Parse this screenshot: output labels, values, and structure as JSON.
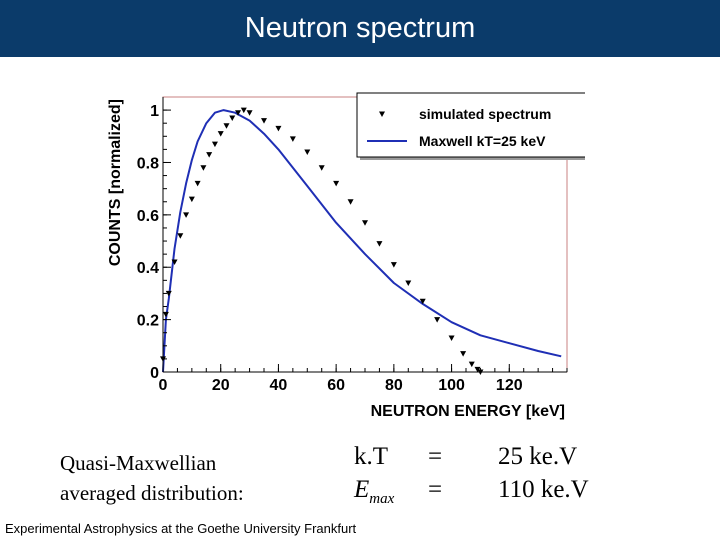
{
  "header": {
    "title": "Neutron spectrum"
  },
  "chart_data": {
    "type": "line",
    "title": "",
    "xlabel": "NEUTRON ENERGY [keV]",
    "ylabel": "COUNTS [normalized]",
    "xlim": [
      0,
      140
    ],
    "ylim": [
      0,
      1.05
    ],
    "xticks": [
      "0",
      "20",
      "40",
      "60",
      "80",
      "100",
      "120"
    ],
    "xtick_values": [
      0,
      20,
      40,
      60,
      80,
      100,
      120
    ],
    "yticks": [
      "0",
      "0.2",
      "0.4",
      "0.6",
      "0.8",
      "1"
    ],
    "ytick_values": [
      0,
      0.2,
      0.4,
      0.6,
      0.8,
      1
    ],
    "legend_position": "top-right",
    "series": [
      {
        "name": "simulated spectrum",
        "style": "markers",
        "color": "#000000",
        "x": [
          0,
          1,
          2,
          4,
          6,
          8,
          10,
          12,
          14,
          16,
          18,
          20,
          22,
          24,
          26,
          28,
          30,
          35,
          40,
          45,
          50,
          55,
          60,
          65,
          70,
          75,
          80,
          85,
          90,
          95,
          100,
          104,
          107,
          109,
          110
        ],
        "y": [
          0.05,
          0.22,
          0.3,
          0.42,
          0.52,
          0.6,
          0.66,
          0.72,
          0.78,
          0.83,
          0.87,
          0.91,
          0.94,
          0.97,
          0.99,
          1.0,
          0.99,
          0.96,
          0.93,
          0.89,
          0.84,
          0.78,
          0.72,
          0.65,
          0.57,
          0.49,
          0.41,
          0.34,
          0.27,
          0.2,
          0.13,
          0.07,
          0.03,
          0.01,
          0.0
        ]
      },
      {
        "name": "Maxwell kT=25 keV",
        "style": "line",
        "color": "#1f2fb5",
        "x": [
          0,
          1,
          2,
          4,
          6,
          8,
          10,
          12,
          15,
          18,
          21,
          25,
          30,
          35,
          40,
          50,
          60,
          70,
          80,
          90,
          100,
          110,
          120,
          130,
          138
        ],
        "y": [
          0.0,
          0.2,
          0.28,
          0.47,
          0.61,
          0.72,
          0.81,
          0.88,
          0.95,
          0.99,
          1.0,
          0.99,
          0.96,
          0.91,
          0.85,
          0.71,
          0.57,
          0.45,
          0.34,
          0.26,
          0.19,
          0.14,
          0.11,
          0.08,
          0.06
        ]
      }
    ]
  },
  "caption": {
    "line1": "Quasi-Maxwellian",
    "line2": "averaged distribution:"
  },
  "params": {
    "kT": {
      "symbol": "k.T",
      "equals": "=",
      "value": "25 ke.V"
    },
    "emax": {
      "symbol": "E",
      "subscript": "max",
      "equals": "=",
      "value": "110 ke.V"
    }
  },
  "footer": {
    "text": "Experimental Astrophysics at the Goethe University Frankfurt"
  }
}
